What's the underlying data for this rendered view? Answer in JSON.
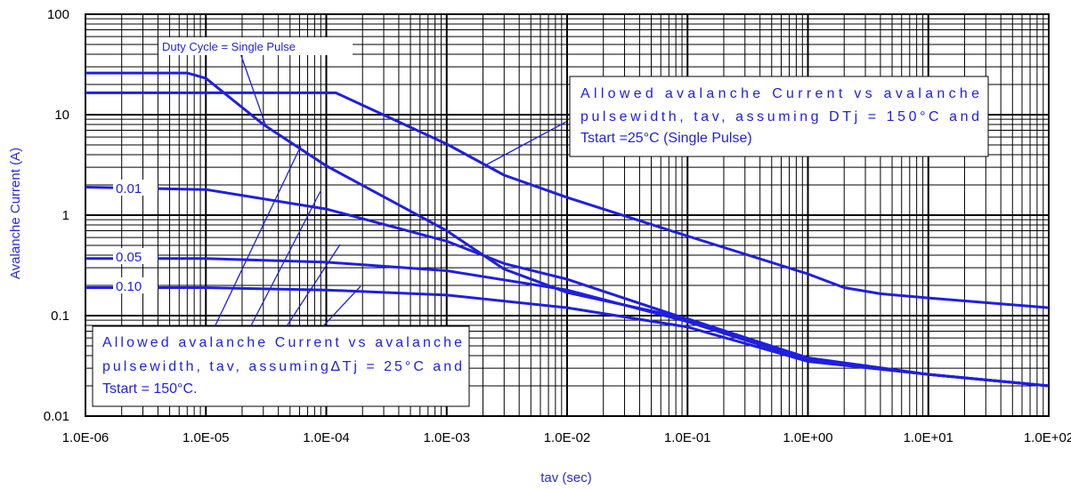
{
  "chart_data": {
    "type": "line",
    "xlabel": "tav (sec)",
    "ylabel": "Avalanche Current (A)",
    "x_scale": "log",
    "y_scale": "log",
    "xlim": [
      1e-06,
      100
    ],
    "ylim": [
      0.01,
      100
    ],
    "grid": true,
    "x_ticks": [
      "1.0E-06",
      "1.0E-05",
      "1.0E-04",
      "1.0E-03",
      "1.0E-02",
      "1.0E-01",
      "1.0E+00",
      "1.0E+01",
      "1.0E+02"
    ],
    "y_ticks": [
      "0.01",
      "0.1",
      "1",
      "10",
      "100"
    ],
    "colors": {
      "curve": "#1f1fe0",
      "grid": "#000000",
      "axis_title": "#2b2bd6"
    },
    "series": [
      {
        "name": "Single Pulse",
        "x": [
          1e-06,
          7e-06,
          1e-05,
          3e-05,
          0.0001,
          0.001,
          0.003,
          0.01,
          0.1,
          1,
          10,
          100
        ],
        "y": [
          26,
          26,
          23,
          8,
          3.1,
          0.7,
          0.29,
          0.17,
          0.093,
          0.038,
          0.026,
          0.02
        ]
      },
      {
        "name": "0.01",
        "x": [
          1e-06,
          1e-05,
          0.0001,
          0.001,
          0.003,
          0.01,
          0.1,
          1,
          10,
          100
        ],
        "y": [
          1.9,
          1.8,
          1.15,
          0.55,
          0.33,
          0.23,
          0.092,
          0.037,
          0.026,
          0.02
        ]
      },
      {
        "name": "0.05",
        "x": [
          1e-06,
          1e-05,
          0.0001,
          0.001,
          0.01,
          0.1,
          1,
          10,
          100
        ],
        "y": [
          0.37,
          0.37,
          0.34,
          0.28,
          0.18,
          0.087,
          0.036,
          0.026,
          0.02
        ]
      },
      {
        "name": "0.10",
        "x": [
          1e-06,
          1e-05,
          0.0001,
          0.001,
          0.01,
          0.1,
          1,
          10,
          100
        ],
        "y": [
          0.19,
          0.19,
          0.18,
          0.16,
          0.12,
          0.077,
          0.035,
          0.026,
          0.02
        ]
      },
      {
        "name": "Tstart = 25°C",
        "x": [
          1e-06,
          0.00012,
          0.001,
          0.003,
          0.01,
          0.1,
          1,
          2,
          4,
          10,
          100
        ],
        "y": [
          16.5,
          16.5,
          5.1,
          2.5,
          1.5,
          0.62,
          0.26,
          0.19,
          0.165,
          0.15,
          0.12
        ]
      }
    ],
    "annotations": {
      "duty_cycle": "Duty Cycle = Single Pulse",
      "label_001": "0.01",
      "label_005": "0.05",
      "label_010": "0.10",
      "note_25": [
        "Allowed avalanche Current vs avalanche",
        "pulsewidth, tav, assuming DTj = 150°C and",
        "Tstart =25°C (Single Pulse)"
      ],
      "note_150": [
        "Allowed avalanche Current vs avalanche",
        "pulsewidth, tav, assuming∆Tj = 25°C and",
        "Tstart = 150°C."
      ]
    }
  }
}
